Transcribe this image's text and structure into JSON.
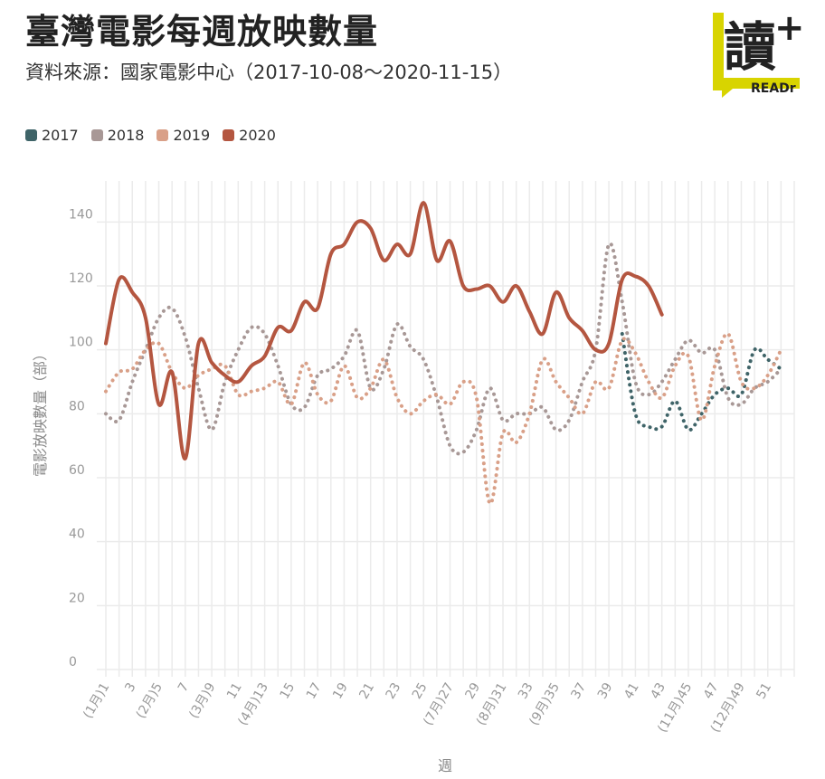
{
  "header": {
    "title": "臺灣電影每週放映數量",
    "subtitle": "資料來源：國家電影中心（2017-10-08～2020-11-15）"
  },
  "logo": {
    "text": "讀",
    "plus": "+",
    "brand": "READr",
    "accent": "#d8d400"
  },
  "legend": [
    {
      "label": "2017",
      "color": "#3f6468"
    },
    {
      "label": "2018",
      "color": "#a89896"
    },
    {
      "label": "2019",
      "color": "#d9a088"
    },
    {
      "label": "2020",
      "color": "#b45640"
    }
  ],
  "chart_data": {
    "type": "line",
    "title": "臺灣電影每週放映數量",
    "xlabel": "週",
    "ylabel": "電影放映數量（部）",
    "xlim": [
      1,
      53
    ],
    "ylim": [
      0,
      140
    ],
    "yticks": [
      0,
      20,
      40,
      60,
      80,
      100,
      120,
      140
    ],
    "xticks": [
      {
        "x": 1,
        "label": "(1月)1"
      },
      {
        "x": 3,
        "label": "3"
      },
      {
        "x": 5,
        "label": "(2月)5"
      },
      {
        "x": 7,
        "label": "7"
      },
      {
        "x": 9,
        "label": "(3月)9"
      },
      {
        "x": 11,
        "label": "11"
      },
      {
        "x": 13,
        "label": "(4月)13"
      },
      {
        "x": 15,
        "label": "15"
      },
      {
        "x": 17,
        "label": "17"
      },
      {
        "x": 19,
        "label": "19"
      },
      {
        "x": 21,
        "label": "21"
      },
      {
        "x": 23,
        "label": "23"
      },
      {
        "x": 25,
        "label": "25"
      },
      {
        "x": 27,
        "label": "(7月)27"
      },
      {
        "x": 29,
        "label": "29"
      },
      {
        "x": 31,
        "label": "(8月)31"
      },
      {
        "x": 33,
        "label": "33"
      },
      {
        "x": 35,
        "label": "(9月)35"
      },
      {
        "x": 37,
        "label": "37"
      },
      {
        "x": 39,
        "label": "39"
      },
      {
        "x": 41,
        "label": "41"
      },
      {
        "x": 43,
        "label": "43"
      },
      {
        "x": 45,
        "label": "(11月)45"
      },
      {
        "x": 47,
        "label": "47"
      },
      {
        "x": 49,
        "label": "(12月)49"
      },
      {
        "x": 51,
        "label": "51"
      }
    ],
    "grid": true,
    "legend_position": "top-left",
    "series": [
      {
        "name": "2017",
        "color": "#3f6468",
        "style": "dotted",
        "start": 40,
        "values": [
          105,
          80,
          76,
          76,
          84,
          75,
          80,
          86,
          88,
          86,
          100,
          97,
          94
        ]
      },
      {
        "name": "2018",
        "color": "#a89896",
        "style": "dotted",
        "start": 1,
        "values": [
          80,
          78,
          90,
          100,
          110,
          113,
          104,
          88,
          75,
          90,
          100,
          107,
          105,
          95,
          83,
          82,
          92,
          94,
          98,
          106,
          88,
          94,
          108,
          101,
          97,
          85,
          70,
          68,
          75,
          88,
          78,
          80,
          80,
          82,
          75,
          78,
          90,
          100,
          133,
          115,
          90,
          86,
          90,
          97,
          103,
          99,
          100,
          85,
          83,
          88,
          90,
          94
        ]
      },
      {
        "name": "2019",
        "color": "#d9a088",
        "style": "dotted",
        "start": 1,
        "values": [
          87,
          93,
          94,
          100,
          102,
          93,
          88,
          92,
          94,
          95,
          86,
          87,
          88,
          90,
          83,
          96,
          86,
          84,
          95,
          85,
          88,
          97,
          85,
          80,
          84,
          86,
          83,
          90,
          85,
          52,
          74,
          71,
          80,
          97,
          90,
          85,
          80,
          90,
          88,
          103,
          99,
          90,
          85,
          95,
          98,
          78,
          95,
          105,
          90,
          88,
          92,
          100
        ]
      },
      {
        "name": "2020",
        "color": "#b45640",
        "style": "solid",
        "start": 1,
        "values": [
          102,
          122,
          118,
          110,
          83,
          93,
          66,
          102,
          96,
          92,
          90,
          95,
          98,
          107,
          106,
          115,
          113,
          130,
          133,
          140,
          138,
          128,
          133,
          130,
          146,
          128,
          134,
          120,
          119,
          120,
          115,
          120,
          112,
          105,
          118,
          110,
          106,
          100,
          102,
          122,
          123,
          120,
          111
        ]
      }
    ]
  }
}
